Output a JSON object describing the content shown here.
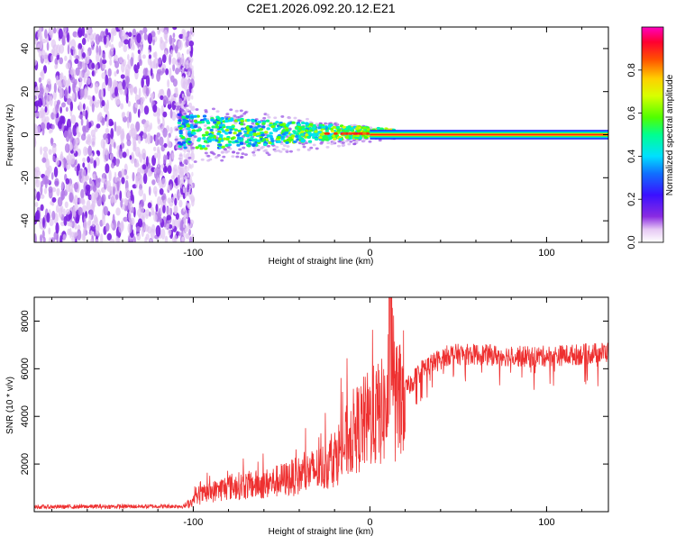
{
  "title": "C2E1.2026.092.20.12.E21",
  "chart_data": [
    {
      "type": "heatmap",
      "name": "spectrogram",
      "xlabel": "Height of straight line (km)",
      "ylabel": "Frequency (Hz)",
      "xlim": [
        -190,
        135
      ],
      "ylim": [
        -50,
        50
      ],
      "xticks": [
        -100,
        0,
        100
      ],
      "yticks": [
        -40,
        -20,
        0,
        20,
        40
      ],
      "colorbar": {
        "label": "Normalized spectral amplitude",
        "range": [
          0,
          1
        ],
        "ticks": [
          0.0,
          0.2,
          0.4,
          0.6,
          0.8
        ]
      },
      "regions": [
        {
          "name": "wideband noise",
          "x": [
            -190,
            -104
          ],
          "y": [
            -50,
            50
          ],
          "amplitude": 0.1
        },
        {
          "name": "dispersed signal",
          "x": [
            -110,
            15
          ],
          "y": [
            -8,
            10
          ],
          "amplitude": 0.45
        },
        {
          "name": "clean tone",
          "x": [
            0,
            135
          ],
          "y": [
            -2,
            2
          ],
          "amplitude": 1.0
        }
      ]
    },
    {
      "type": "line",
      "name": "snr",
      "xlabel": "Height of straight line (km)",
      "ylabel": "SNR (10 * v/v)",
      "xlim": [
        -190,
        135
      ],
      "ylim": [
        0,
        9000
      ],
      "xticks": [
        -100,
        0,
        100
      ],
      "yticks": [
        2000,
        4000,
        6000,
        8000
      ],
      "color": "#ee3030",
      "envelope": [
        {
          "x": -190,
          "y": 200
        },
        {
          "x": -105,
          "y": 230
        },
        {
          "x": -95,
          "y": 700
        },
        {
          "x": -80,
          "y": 1050
        },
        {
          "x": -60,
          "y": 1150
        },
        {
          "x": -40,
          "y": 1500
        },
        {
          "x": -25,
          "y": 1900
        },
        {
          "x": -15,
          "y": 2700
        },
        {
          "x": -10,
          "y": 3300
        },
        {
          "x": 0,
          "y": 3900
        },
        {
          "x": 10,
          "y": 4300
        },
        {
          "x": 12,
          "y": 8900
        },
        {
          "x": 14,
          "y": 4500
        },
        {
          "x": 20,
          "y": 5100
        },
        {
          "x": 30,
          "y": 6000
        },
        {
          "x": 45,
          "y": 6600
        },
        {
          "x": 60,
          "y": 6600
        },
        {
          "x": 90,
          "y": 6500
        },
        {
          "x": 120,
          "y": 6600
        },
        {
          "x": 135,
          "y": 6700
        }
      ]
    }
  ]
}
